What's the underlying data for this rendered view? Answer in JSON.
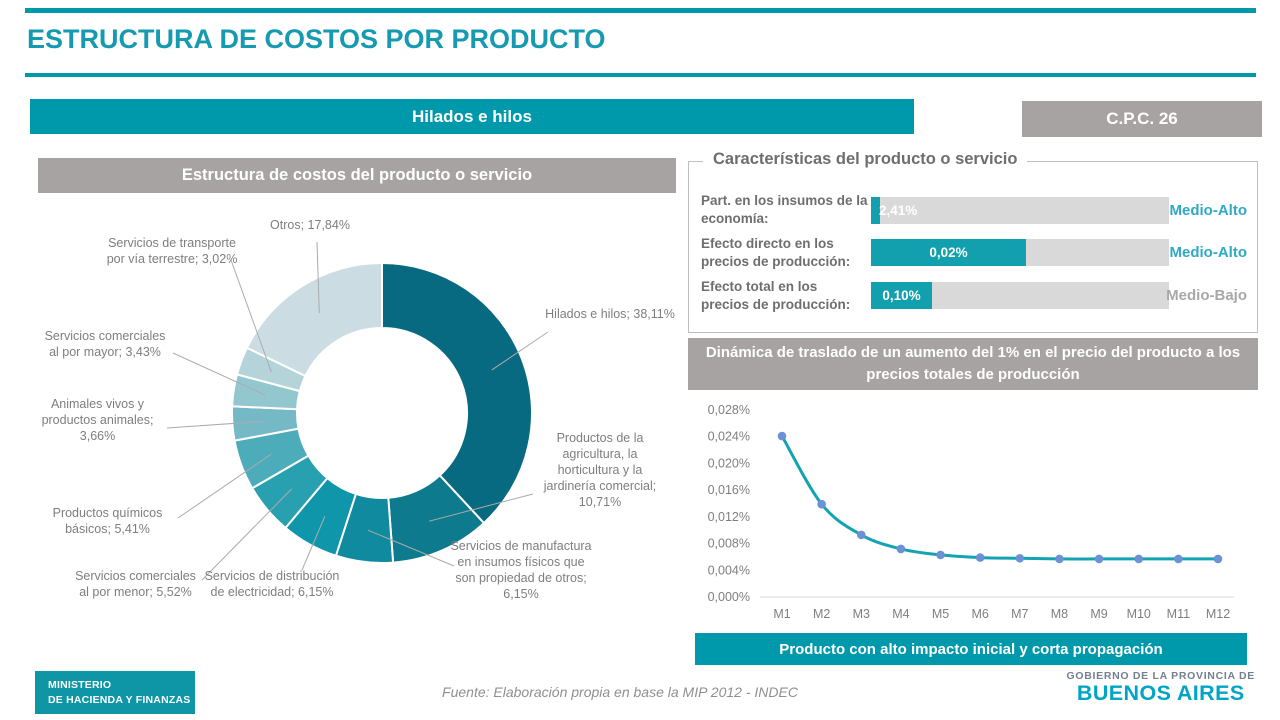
{
  "header": {
    "title": "ESTRUCTURA DE COSTOS POR PRODUCTO"
  },
  "product_banner": {
    "label": "Hilados e hilos"
  },
  "cpc_badge": {
    "label": "C.P.C. 26"
  },
  "impact_banner": {
    "label": "Producto con alto impacto inicial y corta propagación"
  },
  "footer": {
    "ministry_line1": "MINISTERIO",
    "ministry_line2": "DE HACIENDA Y FINANZAS",
    "source": "Fuente: Elaboración propia en base la MIP 2012 - INDEC",
    "government_line1": "GOBIERNO DE LA PROVINCIA DE",
    "government_line2": "BUENOS AIRES"
  },
  "colors": {
    "accent": "#0099ab",
    "banner_gray": "#a7a3a2",
    "title_teal": "#169ab1",
    "bar_track": "#d9d9d9",
    "bar_fill": "#12a0ae",
    "rating_high": "#2fa9c4",
    "rating_low": "#a8a8a8",
    "leader_line": "#ababab",
    "axis_text": "#7f7f7f"
  },
  "chart_data": [
    {
      "type": "pie",
      "donut": true,
      "title": "Estructura de costos del producto o servicio",
      "unit": "%",
      "start_angle_deg": 0,
      "direction": "clockwise",
      "segments": [
        {
          "label": "Hilados e hilos; 38,11%",
          "name": "Hilados e hilos",
          "value": 38.11,
          "color": "#086a80"
        },
        {
          "label": "Productos de la agricultura, la horticultura y la jardinería comercial; 10,71%",
          "name": "Productos de la agricultura, la horticultura y la jardinería comercial",
          "value": 10.71,
          "color": "#0d7a8e"
        },
        {
          "label": "Servicios de manufactura en insumos físicos que son propiedad de otros; 6,15%",
          "name": "Servicios de manufactura en insumos físicos que son propiedad de otros",
          "value": 6.15,
          "color": "#0f8a9e"
        },
        {
          "label": "Servicios de distribución de electricidad; 6,15%",
          "name": "Servicios de distribución de electricidad",
          "value": 6.15,
          "color": "#1096aa"
        },
        {
          "label": "Servicios comerciales al por menor; 5,52%",
          "name": "Servicios comerciales al por menor",
          "value": 5.52,
          "color": "#29a0b0"
        },
        {
          "label": "Productos químicos básicos; 5,41%",
          "name": "Productos químicos básicos",
          "value": 5.41,
          "color": "#4dacba"
        },
        {
          "label": "Animales vivos y productos animales; 3,66%",
          "name": "Animales vivos y productos animales",
          "value": 3.66,
          "color": "#74b9c5"
        },
        {
          "label": "Servicios comerciales al por mayor; 3,43%",
          "name": "Servicios comerciales al por mayor",
          "value": 3.43,
          "color": "#93c7d0"
        },
        {
          "label": "Servicios de transporte por vía terrestre; 3,02%",
          "name": "Servicios de transporte por vía terrestre",
          "value": 3.02,
          "color": "#b4d4da"
        },
        {
          "label": "Otros; 17,84%",
          "name": "Otros",
          "value": 17.84,
          "color": "#cbdde2"
        }
      ]
    },
    {
      "type": "line",
      "title": "Dinámica de traslado de un aumento del 1% en el precio del producto a los precios totales de producción",
      "x": [
        "M1",
        "M2",
        "M3",
        "M4",
        "M5",
        "M6",
        "M7",
        "M8",
        "M9",
        "M10",
        "M11",
        "M12"
      ],
      "values": [
        0.0241,
        0.0139,
        0.0093,
        0.0072,
        0.0063,
        0.0059,
        0.0058,
        0.0057,
        0.0057,
        0.0057,
        0.0057,
        0.0057
      ],
      "y_ticks": [
        "0,000%",
        "0,004%",
        "0,008%",
        "0,012%",
        "0,016%",
        "0,020%",
        "0,024%",
        "0,028%"
      ],
      "ylim": [
        0,
        0.028
      ],
      "grid": false,
      "legend": "none",
      "line_color": "#14a3b2",
      "marker_color": "#6a92d4"
    },
    {
      "type": "bar",
      "title": "Características del producto o servicio",
      "orientation": "horizontal",
      "categories": [
        "Part. en los insumos de la economía:",
        "Efecto directo en los precios de producción:",
        "Efecto total en los precios de producción:"
      ],
      "value_labels": [
        "2,41%",
        "0,02%",
        "0,10%"
      ],
      "bar_fractions": [
        0.03,
        0.52,
        0.205
      ],
      "ratings": [
        "Medio-Alto",
        "Medio-Alto",
        "Medio-Bajo"
      ],
      "rating_levels": [
        "high",
        "high",
        "low"
      ]
    }
  ]
}
